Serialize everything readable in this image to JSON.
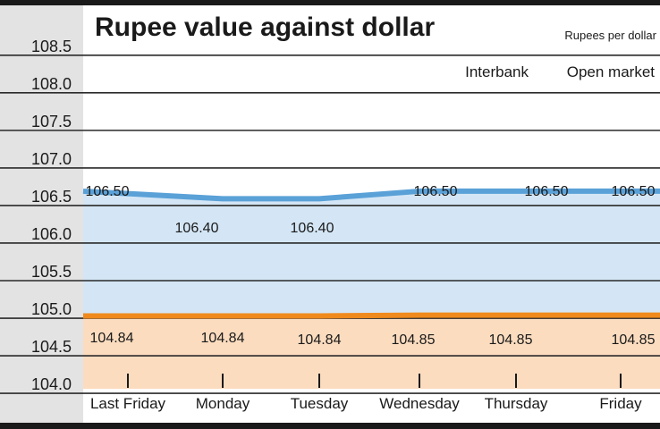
{
  "chart_data": {
    "type": "line",
    "title": "Rupee value against dollar",
    "units": "Rupees per dollar",
    "legend_placement": "top-right",
    "grid": true,
    "categories": [
      "Last Friday",
      "Monday",
      "Tuesday",
      "Wednesday",
      "Thursday",
      "Friday"
    ],
    "y_ticks": [
      "104.0",
      "104.5",
      "105.0",
      "105.5",
      "106.0",
      "106.5",
      "107.0",
      "107.5",
      "108.0",
      "108.5"
    ],
    "ylim": [
      103.87,
      108.95
    ],
    "series": [
      {
        "name": "Open market",
        "color": "#5aa1d8",
        "fill": "#d4e6f5",
        "values": [
          106.5,
          106.4,
          106.4,
          106.5,
          106.5,
          106.5
        ],
        "labels": [
          "106.50",
          "106.40",
          "106.40",
          "106.50",
          "106.50",
          "106.50"
        ]
      },
      {
        "name": "Interbank",
        "color": "#f08a1c",
        "fill": "#fbdcbf",
        "values": [
          104.84,
          104.84,
          104.84,
          104.85,
          104.85,
          104.85
        ],
        "labels": [
          "104.84",
          "104.84",
          "104.84",
          "104.85",
          "104.85",
          "104.85"
        ]
      }
    ]
  }
}
